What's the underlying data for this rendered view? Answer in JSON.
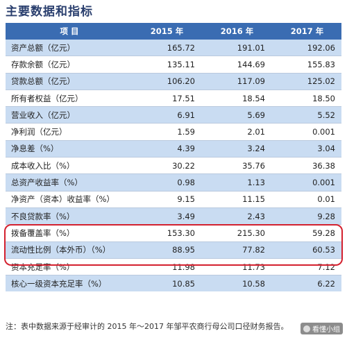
{
  "title": "主要数据和指标",
  "table": {
    "headers": [
      "项 目",
      "2015 年",
      "2016 年",
      "2017 年"
    ],
    "rows": [
      [
        "资产总额（亿元）",
        "165.72",
        "191.01",
        "192.06"
      ],
      [
        "存款余额（亿元）",
        "135.11",
        "144.69",
        "155.83"
      ],
      [
        "贷款总额（亿元）",
        "106.20",
        "117.09",
        "125.02"
      ],
      [
        "所有者权益（亿元）",
        "17.51",
        "18.54",
        "18.50"
      ],
      [
        "营业收入（亿元）",
        "6.91",
        "5.69",
        "5.52"
      ],
      [
        "净利润（亿元）",
        "1.59",
        "2.01",
        "0.001"
      ],
      [
        "净息差（%）",
        "4.39",
        "3.24",
        "3.04"
      ],
      [
        "成本收入比（%）",
        "30.22",
        "35.76",
        "36.38"
      ],
      [
        "总资产收益率（%）",
        "0.98",
        "1.13",
        "0.001"
      ],
      [
        "净资产（资本）收益率（%）",
        "9.15",
        "11.15",
        "0.01"
      ],
      [
        "不良贷款率（%）",
        "3.49",
        "2.43",
        "9.28"
      ],
      [
        "拨备覆盖率（%）",
        "153.30",
        "215.30",
        "59.28"
      ],
      [
        "流动性比例（本外币）（%）",
        "88.95",
        "77.82",
        "60.53"
      ],
      [
        "资本充足率（%）",
        "11.98",
        "11.73",
        "7.12"
      ],
      [
        "核心一级资本充足率（%）",
        "10.85",
        "10.58",
        "6.22"
      ]
    ]
  },
  "footnote": "注：表中数据来源于经审计的 2015 年～2017 年邹平农商行母公司口径财务报告。",
  "watermark": "看懂小组",
  "colors": {
    "header": "#3a6cb2",
    "shade": "#c9dcf2",
    "highlight": "#d3202e"
  }
}
